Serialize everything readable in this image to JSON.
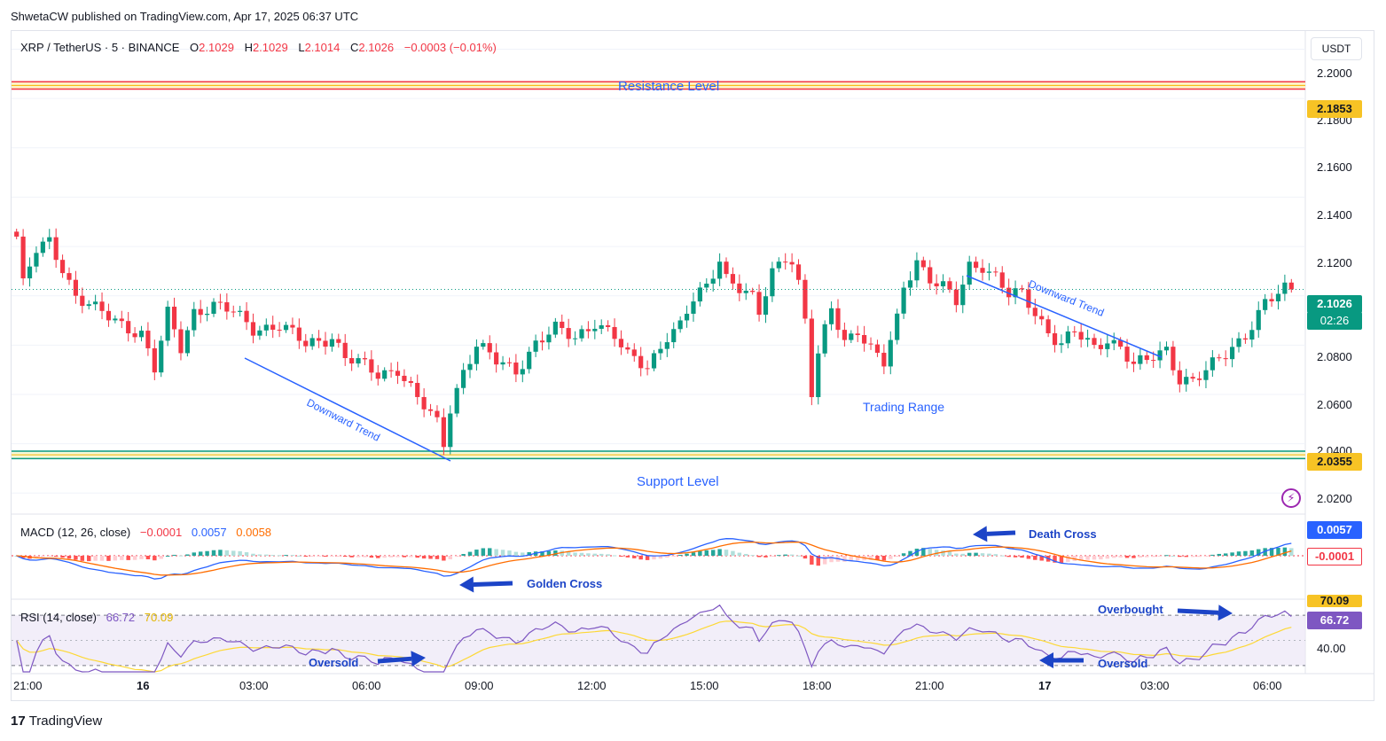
{
  "publisher_line": "ShwetaCW published on TradingView.com, Apr 17, 2025 06:37 UTC",
  "legend": {
    "symbol": "XRP / TetherUS · 5 · BINANCE",
    "o_label": "O",
    "o_value": "2.1029",
    "h_label": "H",
    "h_value": "2.1029",
    "l_label": "L",
    "l_value": "2.1014",
    "c_label": "C",
    "c_value": "2.1026",
    "change": "−0.0003 (−0.01%)"
  },
  "currency": "USDT",
  "price_axis": [
    "2.2000",
    "2.1800",
    "2.1600",
    "2.1400",
    "2.1200",
    "2.0800",
    "2.0600",
    "2.0400",
    "2.0200"
  ],
  "badges": {
    "resistance": "2.1853",
    "last_price": "2.1026",
    "countdown": "02:26",
    "support": "2.0355",
    "macd_line": "0.0057",
    "macd_hist": "-0.0001",
    "rsi_value": "66.72",
    "rsi_ma": "70.09",
    "rsi_level": "40.00"
  },
  "annotations": {
    "resistance": "Resistance Level",
    "support": "Support Level",
    "downtrend_1": "Downward Trend",
    "downtrend_2": "Downward Trend",
    "trading_range": "Trading Range",
    "golden_cross": "Golden Cross",
    "death_cross": "Death Cross",
    "oversold_1": "Oversold",
    "oversold_2": "Oversold",
    "overbought": "Overbought"
  },
  "macd_legend": {
    "name": "MACD (12, 26, close)",
    "hist": "−0.0001",
    "macd": "0.0057",
    "signal": "0.0058"
  },
  "rsi_legend": {
    "name": "RSI (14, close)",
    "rsi": "66.72",
    "ma": "70.09"
  },
  "time_axis": [
    "21:00",
    "16",
    "03:00",
    "06:00",
    "09:00",
    "12:00",
    "15:00",
    "18:00",
    "21:00",
    "17",
    "03:00",
    "06:00"
  ],
  "brand": {
    "mark": "17",
    "name": "TradingView"
  },
  "colors": {
    "up": "#089981",
    "down": "#f23645",
    "macd": "#2962ff",
    "signal": "#ff6d00",
    "rsi": "#7e57c2",
    "rsi_ma": "#fdd835",
    "annotation": "#2962ff"
  },
  "chart_data": [
    {
      "type": "candlestick",
      "title": "XRP / TetherUS · 5 · BINANCE",
      "x_ticks": [
        "21:00",
        "16",
        "03:00",
        "06:00",
        "09:00",
        "12:00",
        "15:00",
        "18:00",
        "21:00",
        "17",
        "03:00",
        "06:00"
      ],
      "ylim": [
        2.014,
        2.207
      ],
      "y_ticks": [
        2.02,
        2.04,
        2.06,
        2.08,
        2.1,
        2.12,
        2.14,
        2.16,
        2.18,
        2.2
      ],
      "resistance_level": 2.1853,
      "support_level": 2.0355,
      "last_close": 2.1026,
      "close_path": [
        {
          "t": 0,
          "p": 2.124
        },
        {
          "t": 1,
          "p": 2.104
        },
        {
          "t": 3,
          "p": 2.118
        },
        {
          "t": 5,
          "p": 2.122
        },
        {
          "t": 7,
          "p": 2.112
        },
        {
          "t": 9,
          "p": 2.1
        },
        {
          "t": 12,
          "p": 2.094
        },
        {
          "t": 15,
          "p": 2.09
        },
        {
          "t": 19,
          "p": 2.085
        },
        {
          "t": 21,
          "p": 2.07
        },
        {
          "t": 23,
          "p": 2.092
        },
        {
          "t": 25,
          "p": 2.079
        },
        {
          "t": 27,
          "p": 2.094
        },
        {
          "t": 30,
          "p": 2.096
        },
        {
          "t": 33,
          "p": 2.093
        },
        {
          "t": 36,
          "p": 2.087
        },
        {
          "t": 40,
          "p": 2.088
        },
        {
          "t": 44,
          "p": 2.08
        },
        {
          "t": 48,
          "p": 2.084
        },
        {
          "t": 50,
          "p": 2.075
        },
        {
          "t": 53,
          "p": 2.071
        },
        {
          "t": 55,
          "p": 2.068
        },
        {
          "t": 58,
          "p": 2.071
        },
        {
          "t": 61,
          "p": 2.058
        },
        {
          "t": 64,
          "p": 2.048
        },
        {
          "t": 65,
          "p": 2.04
        },
        {
          "t": 66,
          "p": 2.055
        },
        {
          "t": 68,
          "p": 2.07
        },
        {
          "t": 70,
          "p": 2.08
        },
        {
          "t": 73,
          "p": 2.073
        },
        {
          "t": 76,
          "p": 2.07
        },
        {
          "t": 79,
          "p": 2.081
        },
        {
          "t": 82,
          "p": 2.086
        },
        {
          "t": 85,
          "p": 2.083
        },
        {
          "t": 88,
          "p": 2.09
        },
        {
          "t": 91,
          "p": 2.083
        },
        {
          "t": 93,
          "p": 2.075
        },
        {
          "t": 96,
          "p": 2.072
        },
        {
          "t": 99,
          "p": 2.084
        },
        {
          "t": 101,
          "p": 2.087
        },
        {
          "t": 103,
          "p": 2.098
        },
        {
          "t": 105,
          "p": 2.104
        },
        {
          "t": 107,
          "p": 2.116
        },
        {
          "t": 108,
          "p": 2.108
        },
        {
          "t": 110,
          "p": 2.103
        },
        {
          "t": 112,
          "p": 2.098
        },
        {
          "t": 113,
          "p": 2.092
        },
        {
          "t": 115,
          "p": 2.11
        },
        {
          "t": 117,
          "p": 2.117
        },
        {
          "t": 118,
          "p": 2.115
        },
        {
          "t": 119,
          "p": 2.105
        },
        {
          "t": 120,
          "p": 2.09
        },
        {
          "t": 121,
          "p": 2.06
        },
        {
          "t": 122,
          "p": 2.075
        },
        {
          "t": 124,
          "p": 2.095
        },
        {
          "t": 126,
          "p": 2.082
        },
        {
          "t": 128,
          "p": 2.087
        },
        {
          "t": 130,
          "p": 2.078
        },
        {
          "t": 132,
          "p": 2.072
        },
        {
          "t": 134,
          "p": 2.09
        },
        {
          "t": 135,
          "p": 2.104
        },
        {
          "t": 137,
          "p": 2.115
        },
        {
          "t": 139,
          "p": 2.107
        },
        {
          "t": 141,
          "p": 2.103
        },
        {
          "t": 143,
          "p": 2.097
        },
        {
          "t": 145,
          "p": 2.112
        },
        {
          "t": 147,
          "p": 2.113
        },
        {
          "t": 149,
          "p": 2.108
        },
        {
          "t": 151,
          "p": 2.1
        },
        {
          "t": 153,
          "p": 2.1
        },
        {
          "t": 155,
          "p": 2.093
        },
        {
          "t": 157,
          "p": 2.086
        },
        {
          "t": 159,
          "p": 2.081
        },
        {
          "t": 161,
          "p": 2.085
        },
        {
          "t": 164,
          "p": 2.078
        },
        {
          "t": 166,
          "p": 2.083
        },
        {
          "t": 168,
          "p": 2.08
        },
        {
          "t": 170,
          "p": 2.072
        },
        {
          "t": 172,
          "p": 2.073
        },
        {
          "t": 175,
          "p": 2.078
        },
        {
          "t": 177,
          "p": 2.067
        },
        {
          "t": 179,
          "p": 2.066
        },
        {
          "t": 181,
          "p": 2.069
        },
        {
          "t": 184,
          "p": 2.076
        },
        {
          "t": 187,
          "p": 2.085
        },
        {
          "t": 190,
          "p": 2.097
        },
        {
          "t": 192,
          "p": 2.1
        },
        {
          "t": 193,
          "p": 2.102
        },
        {
          "t": 194,
          "p": 2.1026
        }
      ]
    },
    {
      "type": "line",
      "title": "MACD (12, 26, close)",
      "series": [
        {
          "name": "MACD",
          "last": 0.0057
        },
        {
          "name": "Signal",
          "last": 0.0058
        },
        {
          "name": "Histogram",
          "last": -0.0001
        }
      ]
    },
    {
      "type": "line",
      "title": "RSI (14, close)",
      "series": [
        {
          "name": "RSI",
          "last": 66.72
        },
        {
          "name": "RSI MA",
          "last": 70.09
        }
      ],
      "y_ticks": [
        40.0
      ]
    }
  ]
}
